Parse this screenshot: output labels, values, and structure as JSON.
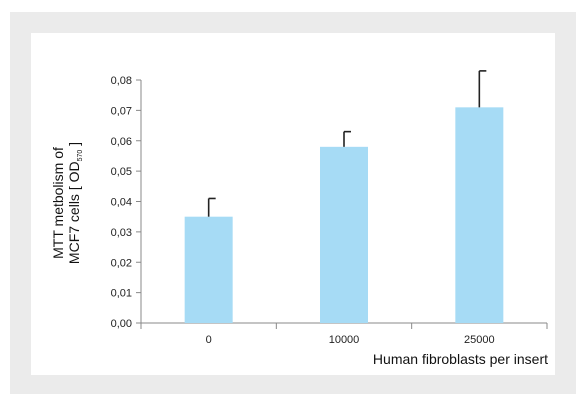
{
  "chart_data": {
    "type": "bar",
    "categories": [
      "0",
      "10000",
      "25000"
    ],
    "values": [
      0.035,
      0.058,
      0.071
    ],
    "error_upper": [
      0.041,
      0.063,
      0.083
    ],
    "ylim": [
      0,
      0.08
    ],
    "y_ticks": [
      "0,00",
      "0,01",
      "0,02",
      "0,03",
      "0,04",
      "0,05",
      "0,06",
      "0,07",
      "0,08"
    ],
    "ylabel_line1": "MTT metbolism of",
    "ylabel_line2_main": "MCF7 cells [ OD",
    "ylabel_line2_sub": "570",
    "ylabel_line2_end": " ]",
    "xlabel": "Human fibroblasts per insert",
    "grid": false,
    "colors": {
      "bar": "#a6dbf5",
      "error": "#222222",
      "axis": "#888888",
      "frame": "#ebebeb"
    }
  }
}
